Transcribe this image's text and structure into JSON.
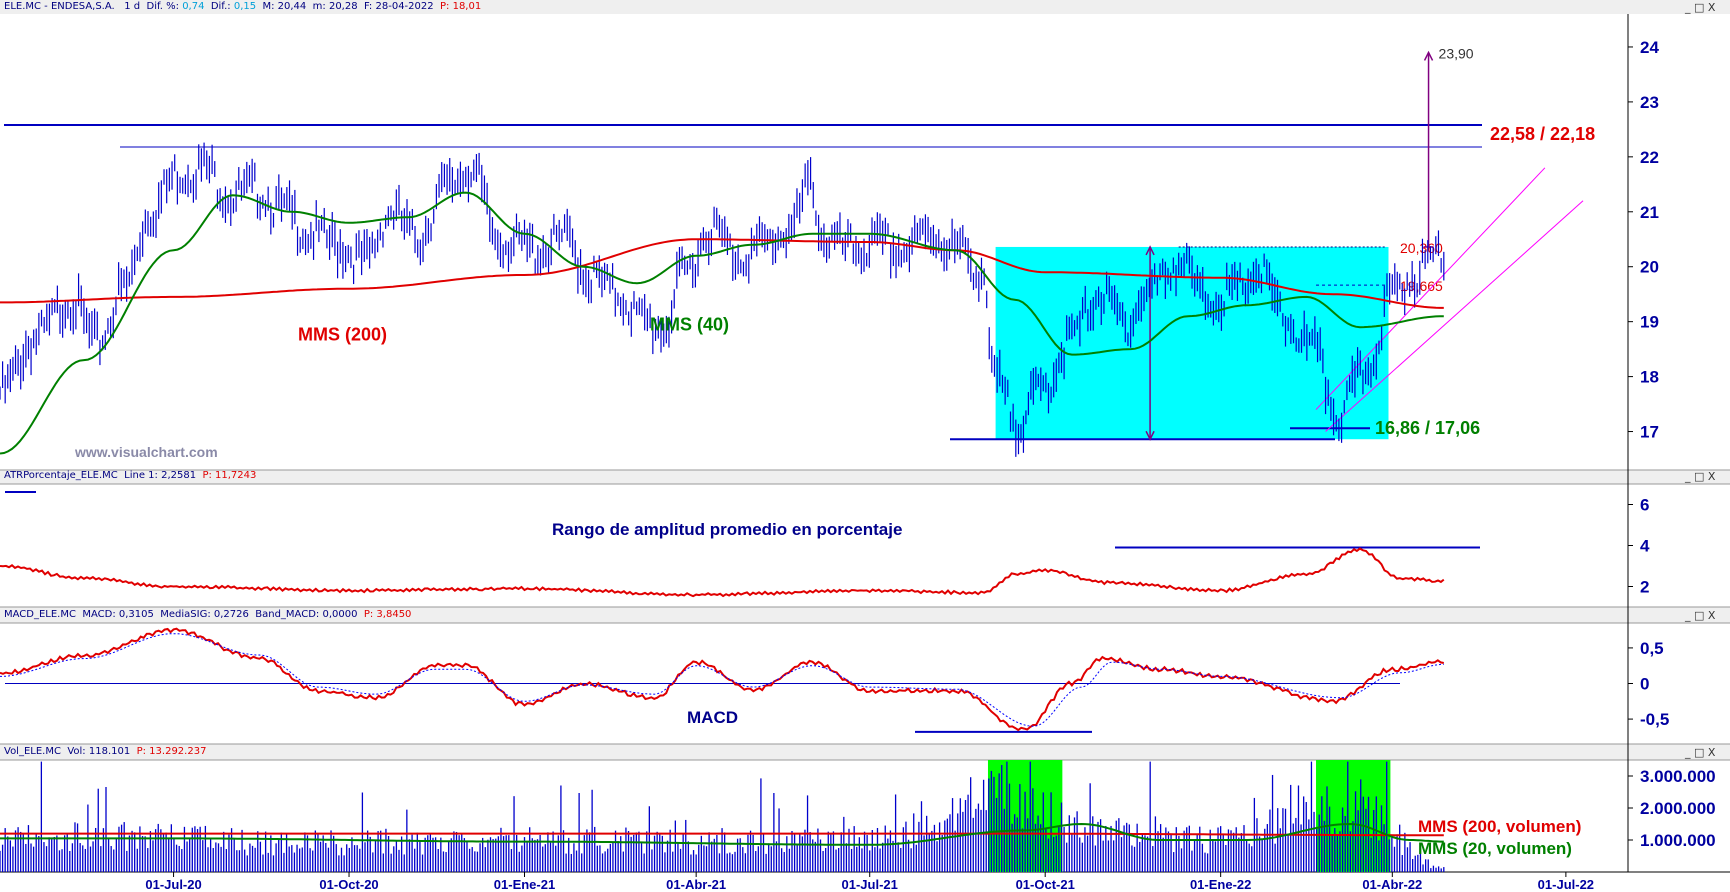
{
  "header": {
    "main": {
      "symbol": "ELE.MC - ENDESA,S.A.",
      "period": "1 d",
      "dif_pct_label": "Dif. %:",
      "dif_pct": "0,74",
      "dif_label": "Dif.:",
      "dif": "0,15",
      "max_label": "M:",
      "max": "20,44",
      "min_label": "m:",
      "min": "20,28",
      "date_label": "F:",
      "date": "28-04-2022",
      "p_label": "P:",
      "p": "18,01"
    },
    "atr": {
      "name": "ATRPorcentaje_ELE.MC",
      "line_label": "Line 1:",
      "line": "2,2581",
      "p_label": "P:",
      "p": "11,7243"
    },
    "macd": {
      "name": "MACD_ELE.MC",
      "macd_label": "MACD:",
      "macd": "0,3105",
      "sig_label": "MediaSIG:",
      "sig": "0,2726",
      "band_label": "Band_MACD:",
      "band": "0,0000",
      "p_label": "P:",
      "p": "3,8450"
    },
    "vol": {
      "name": "Vol_ELE.MC",
      "vol_label": "Vol:",
      "vol": "118.101",
      "p_label": "P:",
      "p": "13.292.237"
    }
  },
  "window_controls": "_ □ X",
  "watermark": "www.visualchart.com",
  "colors": {
    "price": "#0000cc",
    "mms200": "#e00000",
    "mms40": "#008000",
    "channel": "#ff00ff",
    "arrow": "#800080",
    "cyan_box": "#00ffff",
    "green_box": "#00ff00",
    "axis": "#0000a0",
    "hline": "#0000c0"
  },
  "chart_data": [
    {
      "type": "line",
      "panel": "price",
      "x_range": [
        "2020-04-01",
        "2022-08-01"
      ],
      "ylim": [
        16.3,
        24.6
      ],
      "y_ticks": [
        "17",
        "18",
        "19",
        "20",
        "21",
        "22",
        "23",
        "24"
      ],
      "x_ticks": [
        {
          "date": "2020-07-01",
          "label": "01-Jul-20"
        },
        {
          "date": "2020-10-01",
          "label": "01-Oct-20"
        },
        {
          "date": "2021-01-01",
          "label": "01-Ene-21"
        },
        {
          "date": "2021-04-01",
          "label": "01-Abr-21"
        },
        {
          "date": "2021-07-01",
          "label": "01-Jul-21"
        },
        {
          "date": "2021-10-01",
          "label": "01-Oct-21"
        },
        {
          "date": "2022-01-01",
          "label": "01-Ene-22"
        },
        {
          "date": "2022-04-01",
          "label": "01-Abr-22"
        },
        {
          "date": "2022-07-01",
          "label": "01-Jul-22"
        }
      ],
      "series": [
        {
          "name": "price",
          "style": "bars",
          "points": [
            [
              "2020-04-01",
              17.7
            ],
            [
              "2020-04-20",
              18.7
            ],
            [
              "2020-05-08",
              19.4
            ],
            [
              "2020-05-22",
              18.6
            ],
            [
              "2020-06-05",
              19.6
            ],
            [
              "2020-06-19",
              21.0
            ],
            [
              "2020-07-03",
              21.7
            ],
            [
              "2020-07-17",
              21.8
            ],
            [
              "2020-07-31",
              21.3
            ],
            [
              "2020-08-14",
              21.4
            ],
            [
              "2020-08-28",
              21.0
            ],
            [
              "2020-09-11",
              20.6
            ],
            [
              "2020-09-25",
              20.4
            ],
            [
              "2020-10-09",
              20.1
            ],
            [
              "2020-10-23",
              21.0
            ],
            [
              "2020-11-06",
              20.5
            ],
            [
              "2020-11-20",
              21.4
            ],
            [
              "2020-12-04",
              21.8
            ],
            [
              "2020-12-18",
              20.5
            ],
            [
              "2021-01-08",
              20.3
            ],
            [
              "2021-01-22",
              20.5
            ],
            [
              "2021-02-05",
              19.8
            ],
            [
              "2021-02-19",
              19.5
            ],
            [
              "2021-03-05",
              19.0
            ],
            [
              "2021-03-15",
              18.9
            ],
            [
              "2021-03-26",
              19.9
            ],
            [
              "2021-04-09",
              20.7
            ],
            [
              "2021-04-23",
              20.2
            ],
            [
              "2021-05-07",
              20.4
            ],
            [
              "2021-05-21",
              20.7
            ],
            [
              "2021-05-31",
              21.5
            ],
            [
              "2021-06-07",
              20.5
            ],
            [
              "2021-06-21",
              20.3
            ],
            [
              "2021-07-05",
              20.4
            ],
            [
              "2021-07-19",
              20.3
            ],
            [
              "2021-08-02",
              20.6
            ],
            [
              "2021-08-16",
              20.3
            ],
            [
              "2021-08-30",
              19.9
            ],
            [
              "2021-09-03",
              18.0
            ],
            [
              "2021-09-17",
              17.2
            ],
            [
              "2021-09-30",
              17.8
            ],
            [
              "2021-10-15",
              18.7
            ],
            [
              "2021-10-29",
              19.5
            ],
            [
              "2021-11-12",
              19.0
            ],
            [
              "2021-11-26",
              19.6
            ],
            [
              "2021-12-10",
              20.1
            ],
            [
              "2021-12-24",
              19.4
            ],
            [
              "2022-01-07",
              19.5
            ],
            [
              "2022-01-21",
              19.9
            ],
            [
              "2022-02-04",
              19.0
            ],
            [
              "2022-02-18",
              18.5
            ],
            [
              "2022-03-04",
              17.3
            ],
            [
              "2022-03-18",
              18.1
            ],
            [
              "2022-04-01",
              19.5
            ],
            [
              "2022-04-14",
              19.9
            ],
            [
              "2022-04-28",
              20.36
            ]
          ]
        },
        {
          "name": "MMS (200)",
          "style": "line",
          "points": [
            [
              "2020-04-01",
              19.35
            ],
            [
              "2020-07-01",
              19.45
            ],
            [
              "2020-10-01",
              19.6
            ],
            [
              "2021-01-01",
              19.85
            ],
            [
              "2021-04-01",
              20.5
            ],
            [
              "2021-07-01",
              20.45
            ],
            [
              "2021-08-15",
              20.3
            ],
            [
              "2021-10-01",
              19.9
            ],
            [
              "2022-01-01",
              19.8
            ],
            [
              "2022-03-01",
              19.5
            ],
            [
              "2022-04-28",
              19.25
            ]
          ]
        },
        {
          "name": "MMS (40)",
          "style": "line",
          "points": [
            [
              "2020-04-01",
              16.6
            ],
            [
              "2020-05-15",
              18.3
            ],
            [
              "2020-07-01",
              20.3
            ],
            [
              "2020-08-01",
              21.3
            ],
            [
              "2020-09-01",
              21.0
            ],
            [
              "2020-10-01",
              20.8
            ],
            [
              "2020-11-01",
              20.9
            ],
            [
              "2020-12-01",
              21.35
            ],
            [
              "2021-01-01",
              20.6
            ],
            [
              "2021-02-01",
              20.0
            ],
            [
              "2021-03-01",
              19.7
            ],
            [
              "2021-04-01",
              20.2
            ],
            [
              "2021-05-01",
              20.4
            ],
            [
              "2021-06-01",
              20.6
            ],
            [
              "2021-07-01",
              20.6
            ],
            [
              "2021-08-15",
              20.3
            ],
            [
              "2021-09-15",
              19.4
            ],
            [
              "2021-10-15",
              18.4
            ],
            [
              "2021-11-15",
              18.5
            ],
            [
              "2021-12-15",
              19.1
            ],
            [
              "2022-01-15",
              19.3
            ],
            [
              "2022-02-15",
              19.45
            ],
            [
              "2022-03-15",
              18.9
            ],
            [
              "2022-04-28",
              19.1
            ]
          ]
        }
      ],
      "annotations": {
        "levels_label": "22,58 / 22,18",
        "levels": [
          22.58,
          22.18
        ],
        "support_label": "16,86 / 17,06",
        "support": [
          16.86,
          17.06
        ],
        "resist1_label": "20,360",
        "resist1": 20.36,
        "resist2_label": "19,665",
        "resist2": 19.665,
        "target_label": "23,90",
        "target": 23.9,
        "mms200_label": "MMS (200)",
        "mms40_label": "MMS (40)"
      }
    },
    {
      "type": "line",
      "panel": "atr",
      "title": "Rango de amplitud promedio en porcentaje",
      "ylim": [
        1.0,
        7.0
      ],
      "y_ticks": [
        "2",
        "4",
        "6"
      ],
      "level": 3.9,
      "series": [
        {
          "name": "ATRPorcentaje",
          "points": [
            [
              "2020-04-01",
              3.0
            ],
            [
              "2020-05-15",
              2.4
            ],
            [
              "2020-07-01",
              2.0
            ],
            [
              "2020-10-01",
              1.8
            ],
            [
              "2021-01-01",
              1.9
            ],
            [
              "2021-04-01",
              1.6
            ],
            [
              "2021-07-01",
              1.8
            ],
            [
              "2021-08-30",
              1.7
            ],
            [
              "2021-09-15",
              2.6
            ],
            [
              "2021-10-01",
              2.8
            ],
            [
              "2021-11-01",
              2.2
            ],
            [
              "2022-01-01",
              1.8
            ],
            [
              "2022-02-15",
              2.6
            ],
            [
              "2022-03-15",
              3.8
            ],
            [
              "2022-04-05",
              2.4
            ],
            [
              "2022-04-28",
              2.26
            ]
          ]
        }
      ]
    },
    {
      "type": "line",
      "panel": "macd",
      "title": "MACD",
      "ylim": [
        -0.85,
        0.85
      ],
      "y_ticks": [
        "0,5",
        "0",
        "-0,5"
      ],
      "level": -0.68,
      "series": [
        {
          "name": "MACD",
          "points": [
            [
              "2020-04-01",
              0.15
            ],
            [
              "2020-05-15",
              0.4
            ],
            [
              "2020-07-01",
              0.75
            ],
            [
              "2020-08-15",
              0.35
            ],
            [
              "2020-09-15",
              -0.1
            ],
            [
              "2020-10-15",
              -0.2
            ],
            [
              "2020-11-15",
              0.25
            ],
            [
              "2020-12-01",
              0.25
            ],
            [
              "2021-01-01",
              -0.3
            ],
            [
              "2021-02-01",
              0.0
            ],
            [
              "2021-03-10",
              -0.2
            ],
            [
              "2021-04-01",
              0.3
            ],
            [
              "2021-05-01",
              -0.1
            ],
            [
              "2021-06-01",
              0.3
            ],
            [
              "2021-07-01",
              -0.1
            ],
            [
              "2021-08-15",
              -0.1
            ],
            [
              "2021-09-20",
              -0.65
            ],
            [
              "2021-10-15",
              0.0
            ],
            [
              "2021-10-31",
              0.35
            ],
            [
              "2021-12-01",
              0.2
            ],
            [
              "2022-01-01",
              0.1
            ],
            [
              "2022-03-01",
              -0.25
            ],
            [
              "2022-04-01",
              0.2
            ],
            [
              "2022-04-28",
              0.31
            ]
          ]
        },
        {
          "name": "MediaSIG",
          "points": [
            [
              "2020-04-01",
              0.1
            ],
            [
              "2020-05-15",
              0.35
            ],
            [
              "2020-07-01",
              0.7
            ],
            [
              "2020-08-15",
              0.4
            ],
            [
              "2020-09-15",
              -0.05
            ],
            [
              "2020-10-15",
              -0.15
            ],
            [
              "2020-11-15",
              0.2
            ],
            [
              "2020-12-01",
              0.2
            ],
            [
              "2021-01-01",
              -0.25
            ],
            [
              "2021-02-01",
              -0.02
            ],
            [
              "2021-03-10",
              -0.15
            ],
            [
              "2021-04-01",
              0.25
            ],
            [
              "2021-05-01",
              -0.05
            ],
            [
              "2021-06-01",
              0.25
            ],
            [
              "2021-07-01",
              -0.05
            ],
            [
              "2021-08-15",
              -0.08
            ],
            [
              "2021-09-25",
              -0.6
            ],
            [
              "2021-10-20",
              -0.05
            ],
            [
              "2021-11-05",
              0.3
            ],
            [
              "2021-12-01",
              0.2
            ],
            [
              "2022-01-01",
              0.1
            ],
            [
              "2022-03-05",
              -0.2
            ],
            [
              "2022-04-05",
              0.15
            ],
            [
              "2022-04-28",
              0.27
            ]
          ]
        }
      ]
    },
    {
      "type": "bar",
      "panel": "volume",
      "ylim": [
        0,
        3500000
      ],
      "y_ticks": [
        "1.000.000",
        "2.000.000",
        "3.000.000"
      ],
      "labels": {
        "mms200": "MMS (200, volumen)",
        "mms20": "MMS (20, volumen)"
      },
      "highlight_ranges": [
        [
          "2021-09-01",
          "2021-10-10"
        ],
        [
          "2022-02-20",
          "2022-03-31"
        ]
      ],
      "series": [
        {
          "name": "Vol",
          "points": [
            [
              "2020-04-01",
              1200000
            ],
            [
              "2020-06-01",
              1100000
            ],
            [
              "2020-09-01",
              900000
            ],
            [
              "2021-01-01",
              1000000
            ],
            [
              "2021-04-01",
              950000
            ],
            [
              "2021-07-01",
              1000000
            ],
            [
              "2021-09-15",
              2400000
            ],
            [
              "2021-10-15",
              1500000
            ],
            [
              "2022-01-01",
              1000000
            ],
            [
              "2022-03-10",
              2100000
            ],
            [
              "2022-04-28",
              118101
            ]
          ]
        },
        {
          "name": "MMS (200, volumen)",
          "points": [
            [
              "2020-04-01",
              1200000
            ],
            [
              "2021-01-01",
              1200000
            ],
            [
              "2021-09-01",
              1200000
            ],
            [
              "2022-04-28",
              1150000
            ]
          ]
        },
        {
          "name": "MMS (20, volumen)",
          "points": [
            [
              "2020-04-01",
              1050000
            ],
            [
              "2020-07-01",
              1050000
            ],
            [
              "2021-01-01",
              950000
            ],
            [
              "2021-07-01",
              850000
            ],
            [
              "2021-09-20",
              1300000
            ],
            [
              "2021-10-20",
              1500000
            ],
            [
              "2021-11-30",
              1000000
            ],
            [
              "2022-01-15",
              1000000
            ],
            [
              "2022-03-10",
              1500000
            ],
            [
              "2022-04-10",
              1000000
            ],
            [
              "2022-04-28",
              950000
            ]
          ]
        }
      ]
    }
  ]
}
